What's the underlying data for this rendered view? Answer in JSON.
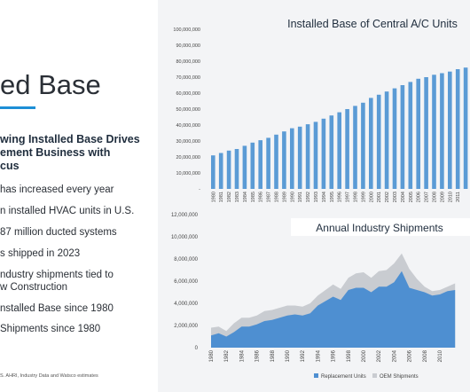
{
  "left": {
    "title": "ed Base",
    "headline_lines": [
      "wing Installed Base Drives",
      "ement Business with",
      "cus"
    ],
    "bullets": [
      [
        "has increased every year"
      ],
      [
        "n installed HVAC units in U.S."
      ],
      [
        "87 million ducted systems"
      ],
      [
        "s shipped in 2023"
      ],
      [
        "ndustry shipments tied to",
        "w Construction"
      ],
      [
        "nstalled Base since 1980"
      ],
      [
        "Shipments since 1980"
      ]
    ],
    "footnote": "S.   AHRI, Industry Data and Watsco estimates"
  },
  "colors": {
    "title_rule": "#1d8fd6",
    "installed_bar": "#5b9bd5",
    "replacement_area": "#4e8fd1",
    "oem_area": "#c9ccd1",
    "axis_text": "#444444"
  },
  "chart_data": [
    {
      "type": "bar",
      "title": "Installed Base of Central A/C Units",
      "categories": [
        "1980",
        "1981",
        "1982",
        "1983",
        "1984",
        "1985",
        "1986",
        "1987",
        "1988",
        "1989",
        "1990",
        "1991",
        "1992",
        "1993",
        "1994",
        "1995",
        "1996",
        "1997",
        "1998",
        "1999",
        "2000",
        "2001",
        "2002",
        "2003",
        "2004",
        "2005",
        "2006",
        "2007",
        "2008",
        "2009",
        "2010",
        "2011",
        "2012"
      ],
      "values": [
        21000000,
        22500000,
        24000000,
        25000000,
        27000000,
        29000000,
        30500000,
        32000000,
        34000000,
        36000000,
        38000000,
        39000000,
        40500000,
        42000000,
        44000000,
        46000000,
        48000000,
        50000000,
        52000000,
        54000000,
        57000000,
        59000000,
        61000000,
        63000000,
        65000000,
        67000000,
        69000000,
        70000000,
        71500000,
        72500000,
        73500000,
        75000000,
        76000000
      ],
      "yticks": [
        "10,000,000",
        "20,000,000",
        "30,000,000",
        "40,000,000",
        "50,000,000",
        "60,000,000",
        "70,000,000",
        "80,000,000",
        "90,000,000",
        "100,000,000"
      ],
      "ylim": [
        0,
        100000000
      ],
      "xticks": [
        "1980",
        "1981",
        "1982",
        "1983",
        "1984",
        "1985",
        "1986",
        "1987",
        "1988",
        "1989",
        "1990",
        "1991",
        "1992",
        "1993",
        "1994",
        "1995",
        "1996",
        "1997",
        "1998",
        "1999",
        "2000",
        "2001",
        "2002",
        "2003",
        "2004",
        "2005",
        "2006",
        "2007",
        "2008",
        "2009",
        "2010",
        "2011"
      ],
      "grid": false,
      "legend": ""
    },
    {
      "type": "area",
      "title": "Annual Industry Shipments",
      "x": [
        1980,
        1981,
        1982,
        1983,
        1984,
        1985,
        1986,
        1987,
        1988,
        1989,
        1990,
        1991,
        1992,
        1993,
        1994,
        1995,
        1996,
        1997,
        1998,
        1999,
        2000,
        2001,
        2002,
        2003,
        2004,
        2005,
        2006,
        2007,
        2008,
        2009,
        2010,
        2011,
        2012
      ],
      "series": [
        {
          "name": "Replacement Units",
          "values": [
            1100000,
            1300000,
            1000000,
            1400000,
            1900000,
            1900000,
            2100000,
            2400000,
            2500000,
            2700000,
            2900000,
            3000000,
            2900000,
            3100000,
            3800000,
            4200000,
            4600000,
            4300000,
            5200000,
            5400000,
            5400000,
            5000000,
            5500000,
            5500000,
            5900000,
            6900000,
            5400000,
            5200000,
            5000000,
            4700000,
            4800000,
            5100000,
            5200000
          ]
        },
        {
          "name": "OEM Shipments",
          "values": [
            1800000,
            1900000,
            1500000,
            2200000,
            2700000,
            2700000,
            2900000,
            3300000,
            3400000,
            3600000,
            3800000,
            3800000,
            3700000,
            4000000,
            4700000,
            5200000,
            5700000,
            5300000,
            6300000,
            6700000,
            6800000,
            6300000,
            6900000,
            7000000,
            7600000,
            8500000,
            7100000,
            6200000,
            5500000,
            5100000,
            5200000,
            5500000,
            5800000
          ]
        }
      ],
      "yticks": [
        "0",
        "2,000,000",
        "4,000,000",
        "6,000,000",
        "8,000,000",
        "10,000,000",
        "12,000,000"
      ],
      "ylim": [
        0,
        12000000
      ],
      "xticks": [
        "1980",
        "1982",
        "1984",
        "1986",
        "1988",
        "1990",
        "1992",
        "1994",
        "1996",
        "1998",
        "2000",
        "2002",
        "2004",
        "2006",
        "2008",
        "2010"
      ],
      "legend": "bottom"
    }
  ]
}
